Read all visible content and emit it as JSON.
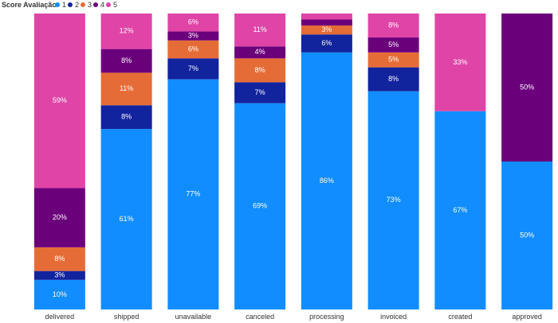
{
  "chart_data": {
    "type": "bar",
    "stacked": true,
    "normalized": true,
    "legend": {
      "title": "Score Avaliação",
      "placement": "top-left",
      "entries": [
        {
          "name": "1",
          "color": "#118DFF"
        },
        {
          "name": "2",
          "color": "#12239E"
        },
        {
          "name": "3",
          "color": "#E66C37"
        },
        {
          "name": "4",
          "color": "#6B007B"
        },
        {
          "name": "5",
          "color": "#E044A7"
        }
      ]
    },
    "categories": [
      "delivered",
      "shipped",
      "unavailable",
      "canceled",
      "processing",
      "invoiced",
      "created",
      "approved"
    ],
    "series": [
      {
        "name": "1",
        "values": [
          10,
          61,
          77,
          69,
          86,
          73,
          67,
          50
        ],
        "labels": [
          "10%",
          "61%",
          "77%",
          "69%",
          "86%",
          "73%",
          "67%",
          "50%"
        ]
      },
      {
        "name": "2",
        "values": [
          3,
          8,
          7,
          7,
          6,
          8,
          0,
          0
        ],
        "labels": [
          "3%",
          "8%",
          "7%",
          "7%",
          "6%",
          "8%",
          "",
          ""
        ]
      },
      {
        "name": "3",
        "values": [
          8,
          11,
          6,
          8,
          3,
          5,
          0,
          0
        ],
        "labels": [
          "8%",
          "11%",
          "6%",
          "8%",
          "3%",
          "5%",
          "",
          ""
        ]
      },
      {
        "name": "4",
        "values": [
          20,
          8,
          3,
          4,
          2,
          5,
          0,
          50
        ],
        "labels": [
          "20%",
          "8%",
          "3%",
          "4%",
          "",
          "5%",
          "",
          "50%"
        ]
      },
      {
        "name": "5",
        "values": [
          59,
          12,
          6,
          11,
          2,
          8,
          33,
          0
        ],
        "labels": [
          "59%",
          "12%",
          "6%",
          "11%",
          "",
          "8%",
          "33%",
          ""
        ]
      }
    ],
    "ylim": [
      0,
      100
    ],
    "grid": false,
    "xlabel": "",
    "ylabel": ""
  }
}
